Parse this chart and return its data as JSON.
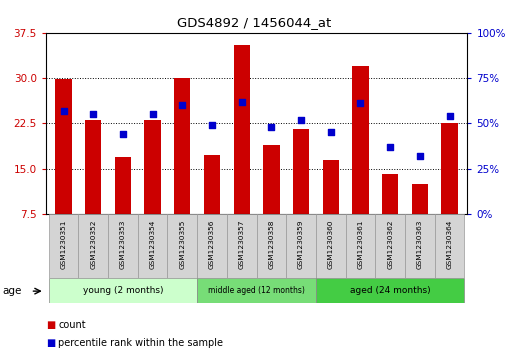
{
  "title": "GDS4892 / 1456044_at",
  "samples": [
    "GSM1230351",
    "GSM1230352",
    "GSM1230353",
    "GSM1230354",
    "GSM1230355",
    "GSM1230356",
    "GSM1230357",
    "GSM1230358",
    "GSM1230359",
    "GSM1230360",
    "GSM1230361",
    "GSM1230362",
    "GSM1230363",
    "GSM1230364"
  ],
  "counts": [
    29.8,
    23.0,
    17.0,
    23.0,
    30.0,
    17.2,
    35.5,
    19.0,
    21.5,
    16.5,
    32.0,
    14.2,
    12.5,
    22.5
  ],
  "percentiles": [
    57,
    55,
    44,
    55,
    60,
    49,
    62,
    48,
    52,
    45,
    61,
    37,
    32,
    54
  ],
  "bar_color": "#cc0000",
  "dot_color": "#0000cc",
  "ylim_left": [
    7.5,
    37.5
  ],
  "ylim_right": [
    0,
    100
  ],
  "yticks_left": [
    7.5,
    15.0,
    22.5,
    30.0,
    37.5
  ],
  "yticks_right": [
    0,
    25,
    50,
    75,
    100
  ],
  "group_colors": [
    "#ccffcc",
    "#77dd77",
    "#44cc44"
  ],
  "bar_width": 0.55,
  "plot_bg_color": "#ffffff",
  "tick_label_color_left": "#cc0000",
  "tick_label_color_right": "#0000cc",
  "age_label": "age",
  "legend_count": "count",
  "legend_percentile": "percentile rank within the sample",
  "group_labels": [
    "young (2 months)",
    "middle aged (12 months)",
    "aged (24 months)"
  ],
  "group_ranges": [
    [
      0,
      4
    ],
    [
      5,
      8
    ],
    [
      9,
      13
    ]
  ]
}
